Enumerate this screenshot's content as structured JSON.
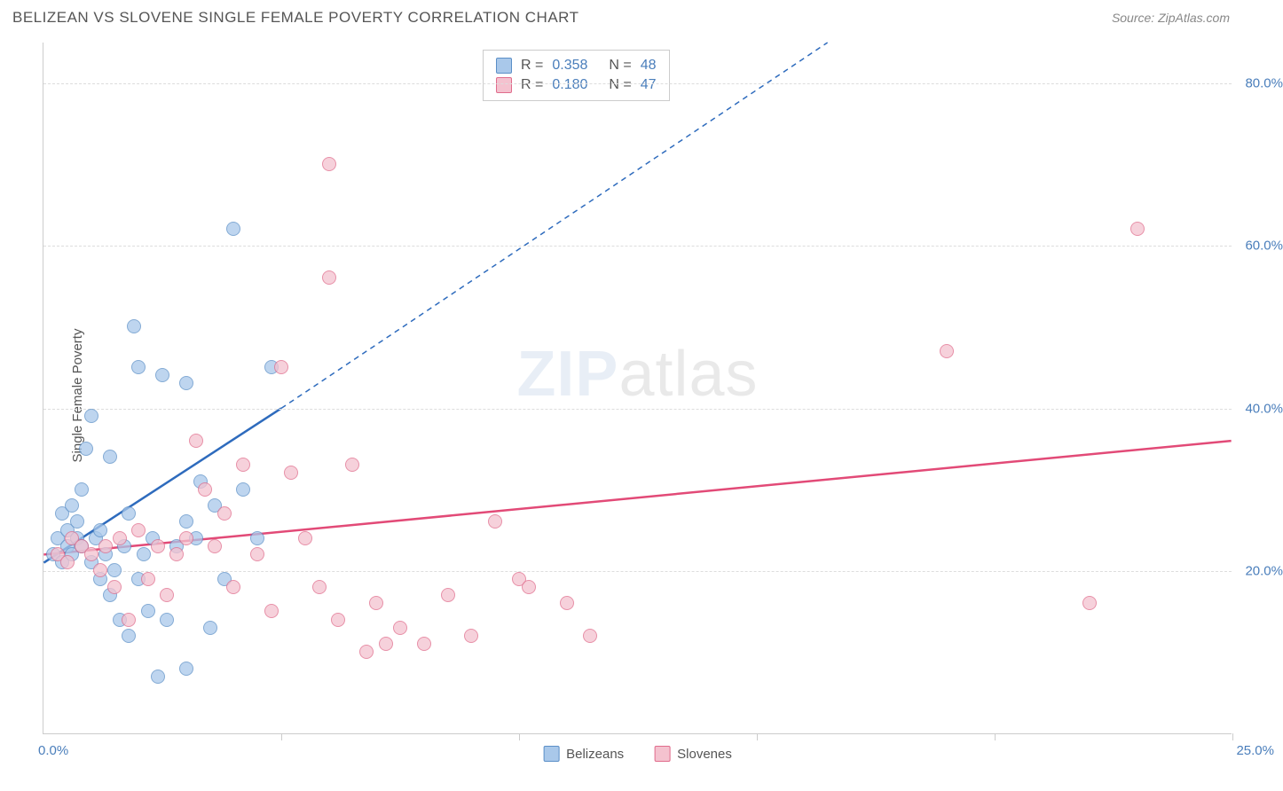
{
  "header": {
    "title": "BELIZEAN VS SLOVENE SINGLE FEMALE POVERTY CORRELATION CHART",
    "source": "Source: ZipAtlas.com"
  },
  "chart": {
    "type": "scatter",
    "ylabel": "Single Female Poverty",
    "xlim": [
      0,
      25
    ],
    "ylim": [
      0,
      85
    ],
    "yticks": [
      20,
      40,
      60,
      80
    ],
    "ytick_labels": [
      "20.0%",
      "40.0%",
      "60.0%",
      "80.0%"
    ],
    "xticks": [
      0,
      5,
      10,
      15,
      20,
      25
    ],
    "x_axis_labels": {
      "start": "0.0%",
      "end": "25.0%"
    },
    "grid_color": "#dddddd",
    "axis_color": "#cccccc",
    "label_color": "#4a7ebb",
    "background_color": "#ffffff",
    "watermark": {
      "bold": "ZIP",
      "rest": "atlas"
    },
    "series": [
      {
        "name": "Belizeans",
        "marker_fill": "#a9c8ea",
        "marker_stroke": "#5b8fc7",
        "line_color": "#2e6bbd",
        "R": "0.358",
        "N": "48",
        "trend": {
          "x1": 0,
          "y1": 21,
          "x2_solid": 5,
          "y2_solid": 40,
          "x2_dash": 16.5,
          "y2_dash": 85
        },
        "points": [
          [
            0.2,
            22
          ],
          [
            0.3,
            24
          ],
          [
            0.4,
            21
          ],
          [
            0.4,
            27
          ],
          [
            0.5,
            25
          ],
          [
            0.5,
            23
          ],
          [
            0.6,
            28
          ],
          [
            0.6,
            22
          ],
          [
            0.7,
            24
          ],
          [
            0.7,
            26
          ],
          [
            0.8,
            30
          ],
          [
            0.8,
            23
          ],
          [
            0.9,
            35
          ],
          [
            1.0,
            39
          ],
          [
            1.0,
            21
          ],
          [
            1.1,
            24
          ],
          [
            1.2,
            25
          ],
          [
            1.2,
            19
          ],
          [
            1.3,
            22
          ],
          [
            1.4,
            34
          ],
          [
            1.4,
            17
          ],
          [
            1.5,
            20
          ],
          [
            1.6,
            14
          ],
          [
            1.7,
            23
          ],
          [
            1.8,
            27
          ],
          [
            1.9,
            50
          ],
          [
            2.0,
            45
          ],
          [
            2.0,
            19
          ],
          [
            2.1,
            22
          ],
          [
            2.2,
            15
          ],
          [
            2.3,
            24
          ],
          [
            2.5,
            44
          ],
          [
            2.6,
            14
          ],
          [
            2.8,
            23
          ],
          [
            3.0,
            26
          ],
          [
            3.0,
            43
          ],
          [
            3.2,
            24
          ],
          [
            3.3,
            31
          ],
          [
            3.5,
            13
          ],
          [
            3.6,
            28
          ],
          [
            3.8,
            19
          ],
          [
            4.0,
            62
          ],
          [
            4.2,
            30
          ],
          [
            4.5,
            24
          ],
          [
            4.8,
            45
          ],
          [
            2.4,
            7
          ],
          [
            3.0,
            8
          ],
          [
            1.8,
            12
          ]
        ]
      },
      {
        "name": "Slovenes",
        "marker_fill": "#f4c2cf",
        "marker_stroke": "#e06c8c",
        "line_color": "#e24a77",
        "R": "0.180",
        "N": "47",
        "trend": {
          "x1": 0,
          "y1": 22,
          "x2_solid": 25,
          "y2_solid": 36
        },
        "points": [
          [
            0.3,
            22
          ],
          [
            0.5,
            21
          ],
          [
            0.6,
            24
          ],
          [
            0.8,
            23
          ],
          [
            1.0,
            22
          ],
          [
            1.2,
            20
          ],
          [
            1.3,
            23
          ],
          [
            1.5,
            18
          ],
          [
            1.6,
            24
          ],
          [
            1.8,
            14
          ],
          [
            2.0,
            25
          ],
          [
            2.2,
            19
          ],
          [
            2.4,
            23
          ],
          [
            2.6,
            17
          ],
          [
            2.8,
            22
          ],
          [
            3.0,
            24
          ],
          [
            3.2,
            36
          ],
          [
            3.4,
            30
          ],
          [
            3.6,
            23
          ],
          [
            3.8,
            27
          ],
          [
            4.0,
            18
          ],
          [
            4.2,
            33
          ],
          [
            4.5,
            22
          ],
          [
            4.8,
            15
          ],
          [
            5.0,
            45
          ],
          [
            5.2,
            32
          ],
          [
            5.5,
            24
          ],
          [
            5.8,
            18
          ],
          [
            6.0,
            56
          ],
          [
            6.2,
            14
          ],
          [
            6.5,
            33
          ],
          [
            6.8,
            10
          ],
          [
            7.0,
            16
          ],
          [
            7.2,
            11
          ],
          [
            7.5,
            13
          ],
          [
            8.0,
            11
          ],
          [
            8.5,
            17
          ],
          [
            9.0,
            12
          ],
          [
            9.5,
            26
          ],
          [
            10.0,
            19
          ],
          [
            10.2,
            18
          ],
          [
            11.0,
            16
          ],
          [
            11.5,
            12
          ],
          [
            19.0,
            47
          ],
          [
            22.0,
            16
          ],
          [
            23.0,
            62
          ],
          [
            6.0,
            70
          ]
        ]
      }
    ],
    "legend_bottom": [
      {
        "label": "Belizeans",
        "fill": "#a9c8ea",
        "stroke": "#5b8fc7"
      },
      {
        "label": "Slovenes",
        "fill": "#f4c2cf",
        "stroke": "#e06c8c"
      }
    ]
  }
}
